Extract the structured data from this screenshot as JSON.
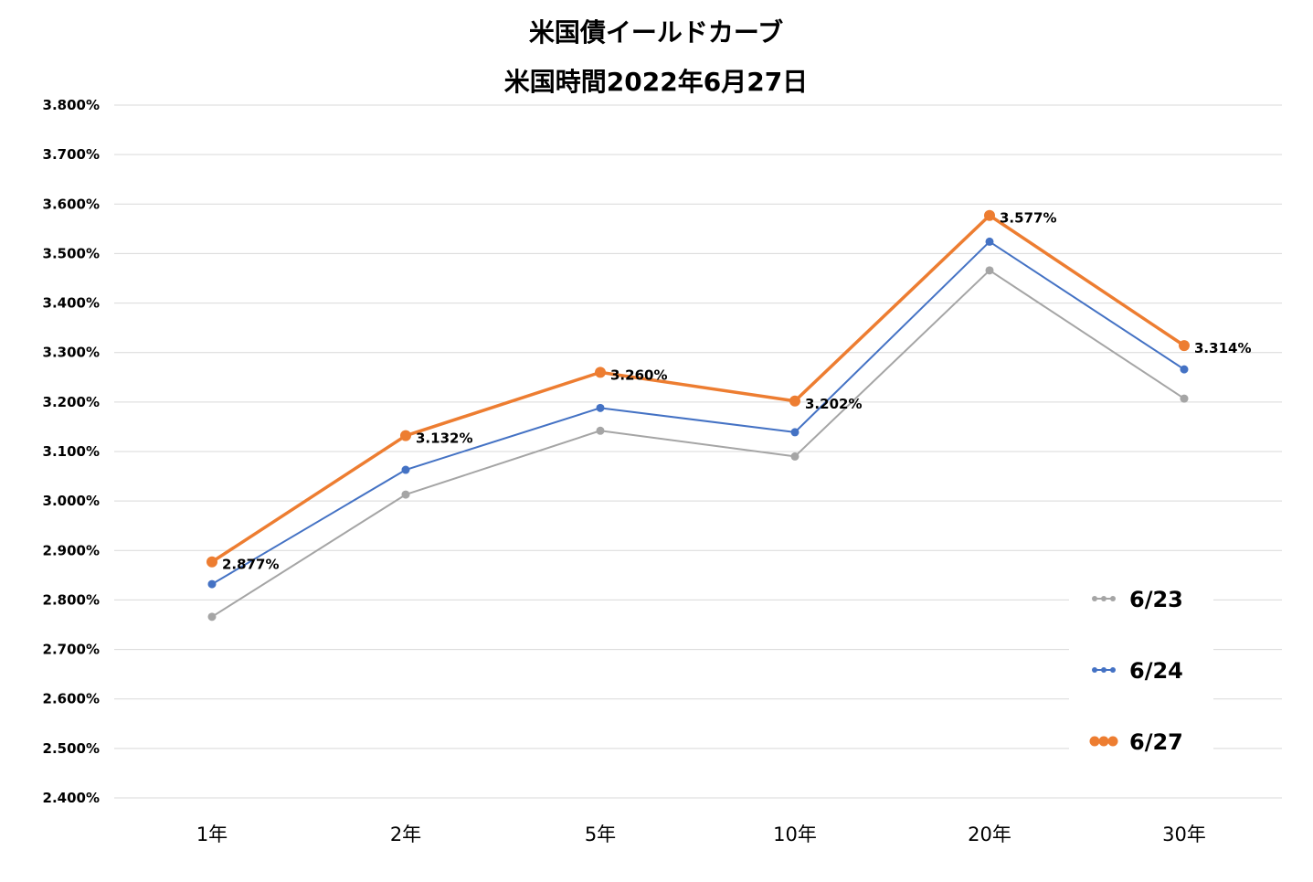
{
  "chart_data": {
    "type": "line",
    "title": "米国債イールドカーブ",
    "subtitle": "米国時間2022年6月27日",
    "categories": [
      "1年",
      "2年",
      "5年",
      "10年",
      "20年",
      "30年"
    ],
    "y_ticks": [
      "3.800%",
      "3.700%",
      "3.600%",
      "3.500%",
      "3.400%",
      "3.300%",
      "3.200%",
      "3.100%",
      "3.000%",
      "2.900%",
      "2.800%",
      "2.700%",
      "2.600%",
      "2.500%",
      "2.400%"
    ],
    "ylim": [
      2.4,
      3.8
    ],
    "grid": true,
    "legend_position": "bottom-right",
    "series": [
      {
        "name": "6/23",
        "color": "#a5a5a5",
        "values": [
          2.766,
          3.013,
          3.142,
          3.09,
          3.466,
          3.207
        ],
        "labels": []
      },
      {
        "name": "6/24",
        "color": "#4472c4",
        "values": [
          2.832,
          3.063,
          3.188,
          3.139,
          3.524,
          3.266
        ],
        "labels": []
      },
      {
        "name": "6/27",
        "color": "#ed7d31",
        "values": [
          2.877,
          3.132,
          3.26,
          3.202,
          3.577,
          3.314
        ],
        "labels": [
          "2.877%",
          "3.132%",
          "3.260%",
          "3.202%",
          "3.577%",
          "3.314%"
        ]
      }
    ]
  }
}
